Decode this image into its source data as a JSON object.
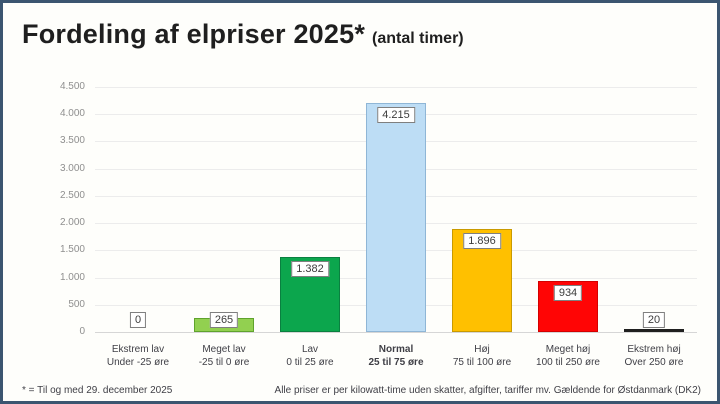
{
  "frame": {
    "border_color": "#3b5570",
    "background_color": "#fefefb"
  },
  "header": {
    "title": "Fordeling af elpriser 2025*",
    "subtitle": "(antal timer)"
  },
  "footnote": {
    "left": "* = Til og med 29. december 2025",
    "right": "Alle priser er per kilowatt-time uden skatter, afgifter, tariffer mv. Gældende for Østdanmark (DK2)"
  },
  "chart_data": {
    "type": "bar",
    "title": "Fordeling af elpriser 2025* (antal timer)",
    "xlabel": "",
    "ylabel": "",
    "categories": [
      "Ekstrem lav",
      "Meget lav",
      "Lav",
      "Normal",
      "Høj",
      "Meget høj",
      "Ekstrem høj"
    ],
    "category_sublabels": [
      "Under -25 øre",
      "-25 til 0 øre",
      "0 til 25 øre",
      "25 til 75 øre",
      "75 til 100 øre",
      "100 til 250 øre",
      "Over 250 øre"
    ],
    "values": [
      0,
      265,
      1382,
      4215,
      1896,
      934,
      20
    ],
    "value_labels": [
      "0",
      "265",
      "1.382",
      "4.215",
      "1.896",
      "934",
      "20"
    ],
    "bar_colors": [
      "#fefefb",
      "#92d050",
      "#0ca64d",
      "#bdddf5",
      "#ffc000",
      "#ff0505",
      "#1f1f1f"
    ],
    "bar_border_colors": [
      "#7f7f7f",
      "#5fa32c",
      "#0a8040",
      "#8fb6d6",
      "#c99a00",
      "#d40000",
      "#1f1f1f"
    ],
    "emphasized_category_index": 3,
    "ylim": [
      0,
      4500
    ],
    "ytick_step": 500,
    "ytick_labels": [
      "0",
      "500",
      "1.000",
      "1.500",
      "2.000",
      "2.500",
      "3.000",
      "3.500",
      "4.000",
      "4.500"
    ],
    "grid": true,
    "legend": false
  }
}
